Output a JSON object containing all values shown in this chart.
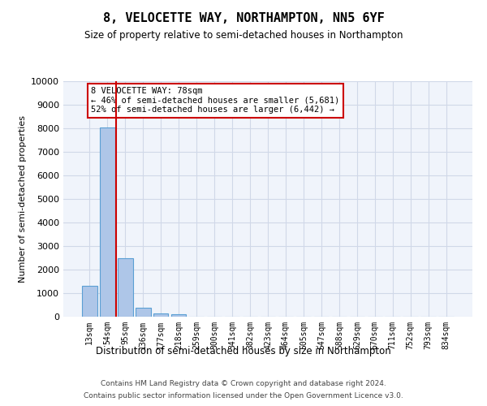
{
  "title": "8, VELOCETTE WAY, NORTHAMPTON, NN5 6YF",
  "subtitle": "Size of property relative to semi-detached houses in Northampton",
  "xlabel": "Distribution of semi-detached houses by size in Northampton",
  "ylabel": "Number of semi-detached properties",
  "footer_line1": "Contains HM Land Registry data © Crown copyright and database right 2024.",
  "footer_line2": "Contains public sector information licensed under the Open Government Licence v3.0.",
  "categories": [
    "13sqm",
    "54sqm",
    "95sqm",
    "136sqm",
    "177sqm",
    "218sqm",
    "259sqm",
    "300sqm",
    "341sqm",
    "382sqm",
    "423sqm",
    "464sqm",
    "505sqm",
    "547sqm",
    "588sqm",
    "629sqm",
    "670sqm",
    "711sqm",
    "752sqm",
    "793sqm",
    "834sqm"
  ],
  "values": [
    1300,
    8050,
    2500,
    375,
    150,
    120,
    0,
    0,
    0,
    0,
    0,
    0,
    0,
    0,
    0,
    0,
    0,
    0,
    0,
    0,
    0
  ],
  "bar_color": "#aec6e8",
  "bar_edge_color": "#5a9fd4",
  "grid_color": "#d0d8e8",
  "background_color": "#f0f4fb",
  "annotation_box_color": "#ffffff",
  "annotation_border_color": "#cc0000",
  "vline_color": "#cc0000",
  "vline_position": 1.5,
  "annotation_text_line1": "8 VELOCETTE WAY: 78sqm",
  "annotation_text_line2": "← 46% of semi-detached houses are smaller (5,681)",
  "annotation_text_line3": "52% of semi-detached houses are larger (6,442) →",
  "ylim": [
    0,
    10000
  ],
  "yticks": [
    0,
    1000,
    2000,
    3000,
    4000,
    5000,
    6000,
    7000,
    8000,
    9000,
    10000
  ]
}
